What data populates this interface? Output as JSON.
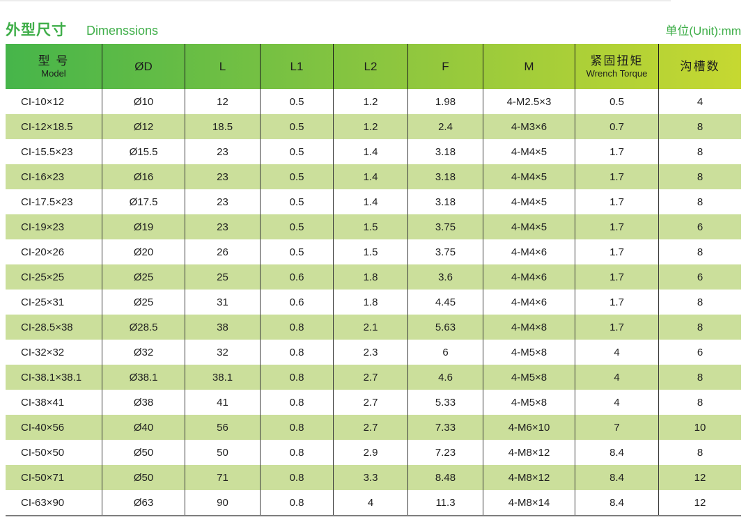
{
  "header": {
    "title_zh": "外型尺寸",
    "title_en": "Dimenssions",
    "unit_label": "单位(Unit):mm"
  },
  "colors": {
    "title_green": "#3fae49",
    "header_gradient_start": "#46b54a",
    "header_gradient_end": "#c6d831",
    "stripe_green": "#cbdf9b"
  },
  "table": {
    "columns": [
      {
        "key": "model",
        "zh": "型 号",
        "en": "Model"
      },
      {
        "key": "d",
        "label": "ØD"
      },
      {
        "key": "l",
        "label": "L"
      },
      {
        "key": "l1",
        "label": "L1"
      },
      {
        "key": "l2",
        "label": "L2"
      },
      {
        "key": "f",
        "label": "F"
      },
      {
        "key": "m",
        "label": "M"
      },
      {
        "key": "torque",
        "zh": "紧固扭矩",
        "en": "Wrench Torque"
      },
      {
        "key": "grooves",
        "zh": "沟槽数"
      }
    ],
    "rows": [
      [
        "CI-10×12",
        "Ø10",
        "12",
        "0.5",
        "1.2",
        "1.98",
        "4-M2.5×3",
        "0.5",
        "4"
      ],
      [
        "CI-12×18.5",
        "Ø12",
        "18.5",
        "0.5",
        "1.2",
        "2.4",
        "4-M3×6",
        "0.7",
        "8"
      ],
      [
        "CI-15.5×23",
        "Ø15.5",
        "23",
        "0.5",
        "1.4",
        "3.18",
        "4-M4×5",
        "1.7",
        "8"
      ],
      [
        "CI-16×23",
        "Ø16",
        "23",
        "0.5",
        "1.4",
        "3.18",
        "4-M4×5",
        "1.7",
        "8"
      ],
      [
        "CI-17.5×23",
        "Ø17.5",
        "23",
        "0.5",
        "1.4",
        "3.18",
        "4-M4×5",
        "1.7",
        "8"
      ],
      [
        "CI-19×23",
        "Ø19",
        "23",
        "0.5",
        "1.5",
        "3.75",
        "4-M4×5",
        "1.7",
        "6"
      ],
      [
        "CI-20×26",
        "Ø20",
        "26",
        "0.5",
        "1.5",
        "3.75",
        "4-M4×6",
        "1.7",
        "8"
      ],
      [
        "CI-25×25",
        "Ø25",
        "25",
        "0.6",
        "1.8",
        "3.6",
        "4-M4×6",
        "1.7",
        "6"
      ],
      [
        "CI-25×31",
        "Ø25",
        "31",
        "0.6",
        "1.8",
        "4.45",
        "4-M4×6",
        "1.7",
        "8"
      ],
      [
        "CI-28.5×38",
        "Ø28.5",
        "38",
        "0.8",
        "2.1",
        "5.63",
        "4-M4×8",
        "1.7",
        "8"
      ],
      [
        "CI-32×32",
        "Ø32",
        "32",
        "0.8",
        "2.3",
        "6",
        "4-M5×8",
        "4",
        "6"
      ],
      [
        "CI-38.1×38.1",
        "Ø38.1",
        "38.1",
        "0.8",
        "2.7",
        "4.6",
        "4-M5×8",
        "4",
        "8"
      ],
      [
        "CI-38×41",
        "Ø38",
        "41",
        "0.8",
        "2.7",
        "5.33",
        "4-M5×8",
        "4",
        "8"
      ],
      [
        "CI-40×56",
        "Ø40",
        "56",
        "0.8",
        "2.7",
        "7.33",
        "4-M6×10",
        "7",
        "10"
      ],
      [
        "CI-50×50",
        "Ø50",
        "50",
        "0.8",
        "2.9",
        "7.23",
        "4-M8×12",
        "8.4",
        "8"
      ],
      [
        "CI-50×71",
        "Ø50",
        "71",
        "0.8",
        "3.3",
        "8.48",
        "4-M8×12",
        "8.4",
        "12"
      ],
      [
        "CI-63×90",
        "Ø63",
        "90",
        "0.8",
        "4",
        "11.3",
        "4-M8×14",
        "8.4",
        "12"
      ]
    ]
  }
}
